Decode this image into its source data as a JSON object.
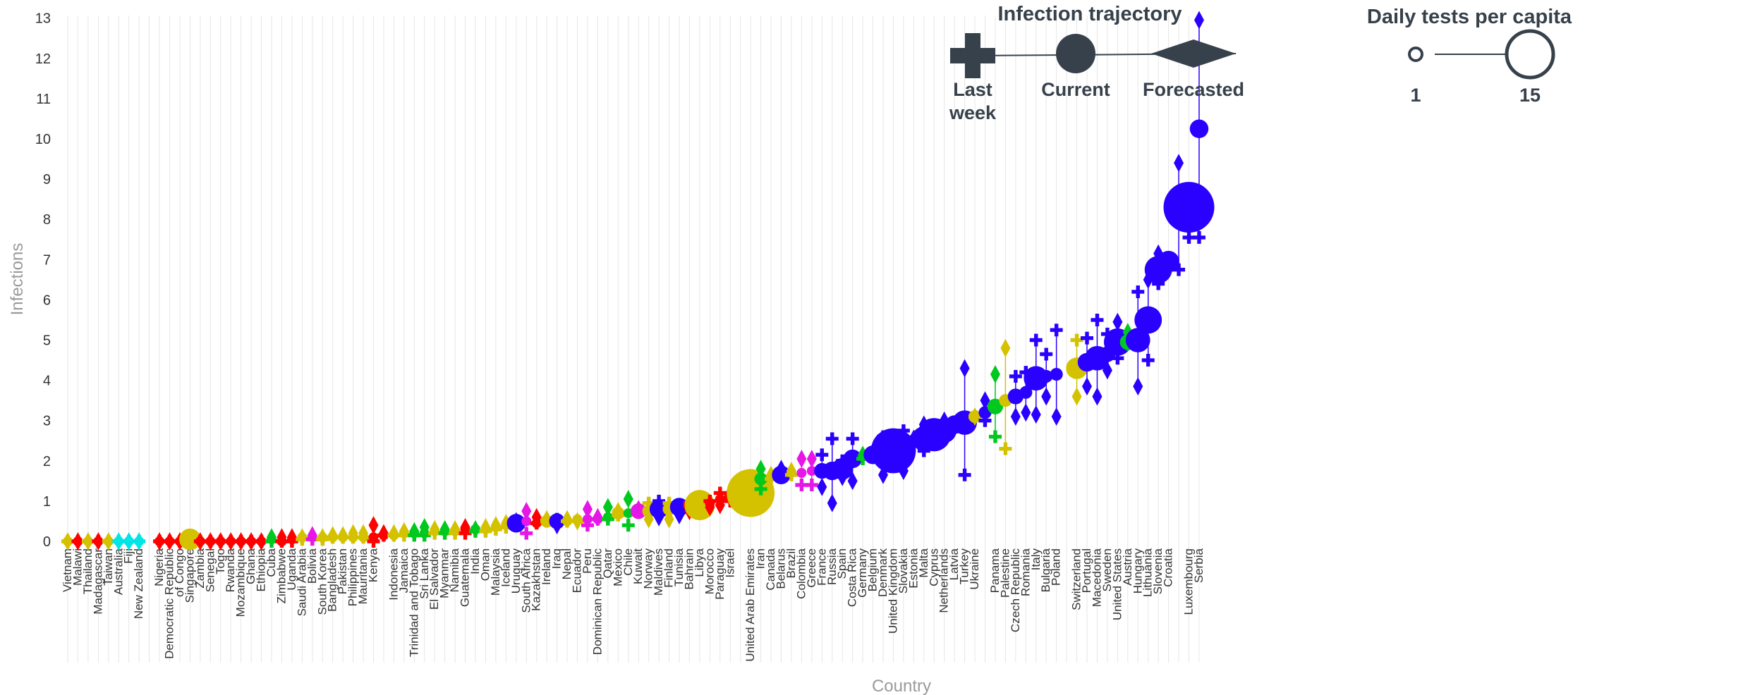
{
  "chart_data": {
    "type": "scatter",
    "xlabel": "Country",
    "ylabel": "Infections",
    "ylim": [
      0,
      13
    ],
    "yticks": [
      0,
      1,
      2,
      3,
      4,
      5,
      6,
      7,
      8,
      9,
      10,
      11,
      12,
      13
    ],
    "grid": "vertical lines per category",
    "colors": {
      "red": "#ff0000",
      "yellow": "#d4c200",
      "cyan": "#00e5e5",
      "green": "#00c81e",
      "magenta": "#e616e6",
      "blue": "#2a00ff",
      "dark": "#37414b",
      "grid": "#e6e6e6"
    },
    "legend_trajectory": {
      "title": "Infection trajectory",
      "labels": [
        "Last",
        "week",
        "Current",
        "Forecasted"
      ]
    },
    "legend_tests": {
      "title": "Daily tests per capita",
      "labels": [
        "1",
        "15"
      ]
    },
    "points": [
      {
        "c": "Vietnam",
        "cur": 0,
        "last": 0,
        "fc": 0,
        "t": 1,
        "col": "yellow"
      },
      {
        "c": "Malawi",
        "cur": 0,
        "last": 0,
        "fc": 0,
        "t": 1,
        "col": "red"
      },
      {
        "c": "Thailand",
        "cur": 0,
        "last": 0,
        "fc": 0,
        "t": 1,
        "col": "yellow"
      },
      {
        "c": "Madagascar",
        "cur": 0,
        "last": 0,
        "fc": 0,
        "t": 1,
        "col": "red"
      },
      {
        "c": "Taiwan",
        "cur": 0,
        "last": 0,
        "fc": 0,
        "t": 1,
        "col": "yellow"
      },
      {
        "c": "Australia",
        "cur": 0,
        "last": 0,
        "fc": 0,
        "t": 1,
        "col": "cyan"
      },
      {
        "c": "Fiji",
        "cur": 0,
        "last": 0,
        "fc": 0,
        "t": 1,
        "col": "cyan"
      },
      {
        "c": "New Zealand",
        "cur": 0,
        "last": 0,
        "fc": 0,
        "t": 1,
        "col": "cyan"
      },
      {
        "c": "",
        "skip": true
      },
      {
        "c": "Nigeria",
        "cur": 0,
        "last": 0,
        "fc": 0,
        "t": 1,
        "col": "red"
      },
      {
        "c": "Democratic Republic",
        "cur": 0,
        "last": 0,
        "fc": 0,
        "t": 1,
        "col": "red"
      },
      {
        "c": "of Congo",
        "cur": 0,
        "last": 0,
        "fc": 0,
        "t": 1,
        "col": "red"
      },
      {
        "c": "Singapore",
        "cur": 0.05,
        "last": 0,
        "fc": 0,
        "t": 5,
        "col": "yellow"
      },
      {
        "c": "Zambia",
        "cur": 0,
        "last": 0,
        "fc": 0,
        "t": 1,
        "col": "red"
      },
      {
        "c": "Senegal",
        "cur": 0,
        "last": 0,
        "fc": 0,
        "t": 1,
        "col": "red"
      },
      {
        "c": "Togo",
        "cur": 0,
        "last": 0,
        "fc": 0,
        "t": 1,
        "col": "red"
      },
      {
        "c": "Rwanda",
        "cur": 0,
        "last": 0,
        "fc": 0,
        "t": 1,
        "col": "red"
      },
      {
        "c": "Mozambique",
        "cur": 0,
        "last": 0,
        "fc": 0,
        "t": 1,
        "col": "red"
      },
      {
        "c": "Ghana",
        "cur": 0,
        "last": 0,
        "fc": 0,
        "t": 1,
        "col": "red"
      },
      {
        "c": "Ethiopia",
        "cur": 0,
        "last": 0,
        "fc": 0,
        "t": 1,
        "col": "red"
      },
      {
        "c": "Cuba",
        "cur": 0.05,
        "last": 0,
        "fc": 0.1,
        "t": 1,
        "col": "green"
      },
      {
        "c": "Zimbabwe",
        "cur": 0,
        "last": 0,
        "fc": 0.1,
        "t": 1,
        "col": "red"
      },
      {
        "c": "Uganda",
        "cur": 0.05,
        "last": 0,
        "fc": 0.1,
        "t": 1,
        "col": "red"
      },
      {
        "c": "Saudi Arabia",
        "cur": 0.1,
        "last": 0.05,
        "fc": 0.1,
        "t": 1,
        "col": "yellow"
      },
      {
        "c": "Bolivia",
        "cur": 0.1,
        "last": 0.05,
        "fc": 0.15,
        "t": 1,
        "col": "magenta"
      },
      {
        "c": "South Korea",
        "cur": 0.1,
        "last": 0.05,
        "fc": 0.1,
        "t": 1,
        "col": "yellow"
      },
      {
        "c": "Bangladesh",
        "cur": 0.1,
        "last": 0.1,
        "fc": 0.15,
        "t": 1,
        "col": "yellow"
      },
      {
        "c": "Pakistan",
        "cur": 0.1,
        "last": 0.1,
        "fc": 0.15,
        "t": 1,
        "col": "yellow"
      },
      {
        "c": "Philippines",
        "cur": 0.1,
        "last": 0.1,
        "fc": 0.2,
        "t": 1,
        "col": "yellow"
      },
      {
        "c": "Mauritania",
        "cur": 0.1,
        "last": 0.1,
        "fc": 0.2,
        "t": 1,
        "col": "yellow"
      },
      {
        "c": "Kenya",
        "cur": 0.1,
        "last": 0,
        "fc": 0.4,
        "t": 1,
        "col": "red"
      },
      {
        "c": "",
        "skip": true,
        "cur": 0.15,
        "last": 0.15,
        "fc": 0.2,
        "t": 1,
        "col": "red"
      },
      {
        "c": "Indonesia",
        "cur": 0.15,
        "last": 0.15,
        "fc": 0.2,
        "t": 1,
        "col": "yellow"
      },
      {
        "c": "Jamaica",
        "cur": 0.2,
        "last": 0.15,
        "fc": 0.25,
        "t": 1,
        "col": "yellow"
      },
      {
        "c": "Trinidad and Tobago",
        "cur": 0.2,
        "last": 0.15,
        "fc": 0.25,
        "t": 1,
        "col": "green"
      },
      {
        "c": "Sri Lanka",
        "cur": 0.2,
        "last": 0.15,
        "fc": 0.35,
        "t": 1,
        "col": "green"
      },
      {
        "c": "El Salvador",
        "cur": 0.25,
        "last": 0.2,
        "fc": 0.3,
        "t": 1,
        "col": "yellow"
      },
      {
        "c": "Myanmar",
        "cur": 0.25,
        "last": 0.2,
        "fc": 0.3,
        "t": 1,
        "col": "green"
      },
      {
        "c": "Namibia",
        "cur": 0.25,
        "last": 0.2,
        "fc": 0.3,
        "t": 1,
        "col": "yellow"
      },
      {
        "c": "Guatemala",
        "cur": 0.3,
        "last": 0.2,
        "fc": 0.35,
        "t": 1,
        "col": "red"
      },
      {
        "c": "India",
        "cur": 0.3,
        "last": 0.25,
        "fc": 0.3,
        "t": 1,
        "col": "green"
      },
      {
        "c": "Oman",
        "cur": 0.3,
        "last": 0.25,
        "fc": 0.35,
        "t": 1,
        "col": "yellow"
      },
      {
        "c": "Malaysia",
        "cur": 0.35,
        "last": 0.3,
        "fc": 0.4,
        "t": 1,
        "col": "yellow"
      },
      {
        "c": "Iceland",
        "cur": 0.4,
        "last": 0.35,
        "fc": 0.45,
        "t": 1,
        "col": "yellow"
      },
      {
        "c": "Uruguay",
        "cur": 0.45,
        "last": 0.4,
        "fc": 0.5,
        "t": 4,
        "col": "blue"
      },
      {
        "c": "South Africa",
        "cur": 0.5,
        "last": 0.2,
        "fc": 0.75,
        "t": 1,
        "col": "magenta"
      },
      {
        "c": "Kazakhstan",
        "cur": 0.45,
        "last": 0.45,
        "fc": 0.6,
        "t": 1,
        "col": "red"
      },
      {
        "c": "Ireland",
        "cur": 0.5,
        "last": 0.5,
        "fc": 0.55,
        "t": 2,
        "col": "yellow"
      },
      {
        "c": "Iraq",
        "cur": 0.5,
        "last": 0.55,
        "fc": 0.4,
        "t": 3,
        "col": "blue"
      },
      {
        "c": "Nepal",
        "cur": 0.5,
        "last": 0.5,
        "fc": 0.55,
        "t": 1,
        "col": "yellow"
      },
      {
        "c": "Ecuador",
        "cur": 0.55,
        "last": 0.5,
        "fc": 0.5,
        "t": 1,
        "col": "yellow"
      },
      {
        "c": "Peru",
        "cur": 0.55,
        "last": 0.4,
        "fc": 0.8,
        "t": 1,
        "col": "magenta"
      },
      {
        "c": "Dominican Republic",
        "cur": 0.55,
        "last": 0.55,
        "fc": 0.6,
        "t": 1,
        "col": "magenta"
      },
      {
        "c": "Qatar",
        "cur": 0.6,
        "last": 0.55,
        "fc": 0.85,
        "t": 1,
        "col": "green"
      },
      {
        "c": "Mexico",
        "cur": 0.7,
        "last": 0.65,
        "fc": 0.75,
        "t": 2,
        "col": "yellow"
      },
      {
        "c": "Chile",
        "cur": 0.7,
        "last": 0.4,
        "fc": 1.05,
        "t": 1,
        "col": "green"
      },
      {
        "c": "Kuwait",
        "cur": 0.75,
        "last": 0.75,
        "fc": 0.8,
        "t": 3,
        "col": "magenta"
      },
      {
        "c": "Norway",
        "cur": 0.75,
        "last": 0.95,
        "fc": 0.55,
        "t": 2,
        "col": "yellow"
      },
      {
        "c": "Maldives",
        "cur": 0.8,
        "last": 1.0,
        "fc": 0.6,
        "t": 4,
        "col": "blue"
      },
      {
        "c": "Finland",
        "cur": 0.8,
        "last": 0.95,
        "fc": 0.55,
        "t": 2,
        "col": "yellow"
      },
      {
        "c": "Tunisia",
        "cur": 0.85,
        "last": 0.9,
        "fc": 0.65,
        "t": 4,
        "col": "blue"
      },
      {
        "c": "Bahrain",
        "cur": 0.9,
        "last": 0.95,
        "fc": 0.75,
        "t": 2,
        "col": "red"
      },
      {
        "c": "Libya",
        "cur": 0.9,
        "last": 0.9,
        "fc": 0.9,
        "t": 8,
        "col": "yellow"
      },
      {
        "c": "Morocco",
        "cur": 0.95,
        "last": 1.0,
        "fc": 0.85,
        "t": 1,
        "col": "red"
      },
      {
        "c": "Paraguay",
        "cur": 1.05,
        "last": 1.2,
        "fc": 0.9,
        "t": 1,
        "col": "red"
      },
      {
        "c": "Israel",
        "cur": 1.1,
        "last": 1.0,
        "fc": 1.2,
        "t": 2,
        "col": "red"
      },
      {
        "c": "",
        "skip": true,
        "cur": 1.1,
        "last": 0.95,
        "fc": 1.3,
        "t": 2,
        "col": "magenta"
      },
      {
        "c": "United Arab Emirates",
        "cur": 1.2,
        "last": 1.1,
        "fc": 1.3,
        "t": 14,
        "col": "yellow"
      },
      {
        "c": "Iran",
        "cur": 1.55,
        "last": 1.3,
        "fc": 1.8,
        "t": 2,
        "col": "green"
      },
      {
        "c": "Canada",
        "cur": 1.6,
        "last": 1.55,
        "fc": 1.65,
        "t": 1,
        "col": "yellow"
      },
      {
        "c": "Belarus",
        "cur": 1.65,
        "last": 1.6,
        "fc": 1.8,
        "t": 4,
        "col": "blue"
      },
      {
        "c": "Brazil",
        "cur": 1.7,
        "last": 1.65,
        "fc": 1.75,
        "t": 1,
        "col": "yellow"
      },
      {
        "c": "Colombia",
        "cur": 1.7,
        "last": 1.4,
        "fc": 2.05,
        "t": 1,
        "col": "magenta"
      },
      {
        "c": "Greece",
        "cur": 1.75,
        "last": 1.4,
        "fc": 2.05,
        "t": 1,
        "col": "magenta"
      },
      {
        "c": "France",
        "cur": 1.75,
        "last": 2.15,
        "fc": 1.35,
        "t": 3,
        "col": "blue"
      },
      {
        "c": "Russia",
        "cur": 1.75,
        "last": 2.55,
        "fc": 0.95,
        "t": 4,
        "col": "blue"
      },
      {
        "c": "Spain",
        "cur": 1.8,
        "last": 2.0,
        "fc": 1.6,
        "t": 5,
        "col": "blue"
      },
      {
        "c": "Costa Rica",
        "cur": 2.05,
        "last": 2.55,
        "fc": 1.5,
        "t": 4,
        "col": "blue"
      },
      {
        "c": "Germany",
        "cur": 2.1,
        "last": 2.05,
        "fc": 2.15,
        "t": 1,
        "col": "green"
      },
      {
        "c": "Belgium",
        "cur": 2.15,
        "last": 2.1,
        "fc": 2.2,
        "t": 4,
        "col": "blue"
      },
      {
        "c": "Denmark",
        "cur": 2.2,
        "last": 2.6,
        "fc": 1.65,
        "t": 5,
        "col": "blue"
      },
      {
        "c": "United Kingdom",
        "cur": 2.25,
        "last": 2.4,
        "fc": 2.1,
        "t": 13,
        "col": "blue"
      },
      {
        "c": "Slovakia",
        "cur": 2.25,
        "last": 2.75,
        "fc": 1.75,
        "t": 6,
        "col": "blue"
      },
      {
        "c": "Estonia",
        "cur": 2.5,
        "last": 2.5,
        "fc": 2.55,
        "t": 2,
        "col": "blue"
      },
      {
        "c": "Malta",
        "cur": 2.55,
        "last": 2.25,
        "fc": 2.9,
        "t": 6,
        "col": "blue"
      },
      {
        "c": "Cyprus",
        "cur": 2.65,
        "last": 2.7,
        "fc": 2.6,
        "t": 9,
        "col": "blue"
      },
      {
        "c": "Netherlands",
        "cur": 2.75,
        "last": 2.55,
        "fc": 3.0,
        "t": 6,
        "col": "blue"
      },
      {
        "c": "Latvia",
        "cur": 2.9,
        "last": 2.95,
        "fc": 2.85,
        "t": 4,
        "col": "blue"
      },
      {
        "c": "Turkey",
        "cur": 2.95,
        "last": 1.65,
        "fc": 4.3,
        "t": 6,
        "col": "blue"
      },
      {
        "c": "Ukraine",
        "cur": 3.1,
        "last": 3.1,
        "fc": 3.1,
        "t": 2,
        "col": "yellow"
      },
      {
        "c": "",
        "skip": true,
        "cur": 3.2,
        "last": 3.0,
        "fc": 3.5,
        "t": 2,
        "col": "blue"
      },
      {
        "c": "Panama",
        "cur": 3.35,
        "last": 2.6,
        "fc": 4.15,
        "t": 3,
        "col": "green"
      },
      {
        "c": "Palestine",
        "cur": 3.5,
        "last": 2.3,
        "fc": 4.8,
        "t": 2,
        "col": "yellow"
      },
      {
        "c": "Czech Republic",
        "cur": 3.6,
        "last": 4.1,
        "fc": 3.1,
        "t": 3,
        "col": "blue"
      },
      {
        "c": "Romania",
        "cur": 3.7,
        "last": 4.2,
        "fc": 3.2,
        "t": 2,
        "col": "blue"
      },
      {
        "c": "Italy",
        "cur": 4.05,
        "last": 5.0,
        "fc": 3.15,
        "t": 6,
        "col": "blue"
      },
      {
        "c": "Bulgaria",
        "cur": 4.1,
        "last": 4.65,
        "fc": 3.6,
        "t": 2,
        "col": "blue"
      },
      {
        "c": "Poland",
        "cur": 4.15,
        "last": 5.25,
        "fc": 3.1,
        "t": 2,
        "col": "blue"
      },
      {
        "c": "",
        "skip": true
      },
      {
        "c": "Switzerland",
        "cur": 4.3,
        "last": 5.0,
        "fc": 3.6,
        "t": 5,
        "col": "yellow"
      },
      {
        "c": "Portugal",
        "cur": 4.45,
        "last": 5.05,
        "fc": 3.85,
        "t": 4,
        "col": "blue"
      },
      {
        "c": "Macedonia",
        "cur": 4.55,
        "last": 5.5,
        "fc": 3.6,
        "t": 6,
        "col": "blue"
      },
      {
        "c": "Sweden",
        "cur": 4.65,
        "last": 5.15,
        "fc": 4.25,
        "t": 3,
        "col": "blue"
      },
      {
        "c": "United States",
        "cur": 4.95,
        "last": 4.55,
        "fc": 5.45,
        "t": 7,
        "col": "blue"
      },
      {
        "c": "Austria",
        "cur": 4.95,
        "last": 4.9,
        "fc": 5.2,
        "t": 3,
        "col": "green"
      },
      {
        "c": "Hungary",
        "cur": 5.0,
        "last": 6.2,
        "fc": 3.85,
        "t": 6,
        "col": "blue"
      },
      {
        "c": "Lithuania",
        "cur": 5.5,
        "last": 4.5,
        "fc": 6.5,
        "t": 7,
        "col": "blue"
      },
      {
        "c": "Slovenia",
        "cur": 6.75,
        "last": 6.4,
        "fc": 7.15,
        "t": 7,
        "col": "blue"
      },
      {
        "c": "Croatia",
        "cur": 6.95,
        "last": 6.95,
        "fc": 6.95,
        "t": 5,
        "col": "blue"
      },
      {
        "c": "",
        "skip": true,
        "cur": 8.05,
        "last": 6.75,
        "fc": 9.4,
        "t": 3,
        "col": "blue"
      },
      {
        "c": "Luxembourg",
        "cur": 8.3,
        "last": 7.55,
        "fc": 8.3,
        "t": 15,
        "col": "blue"
      },
      {
        "c": "Serbia",
        "cur": 10.25,
        "last": 7.55,
        "fc": 12.95,
        "t": 4,
        "col": "blue"
      }
    ]
  }
}
